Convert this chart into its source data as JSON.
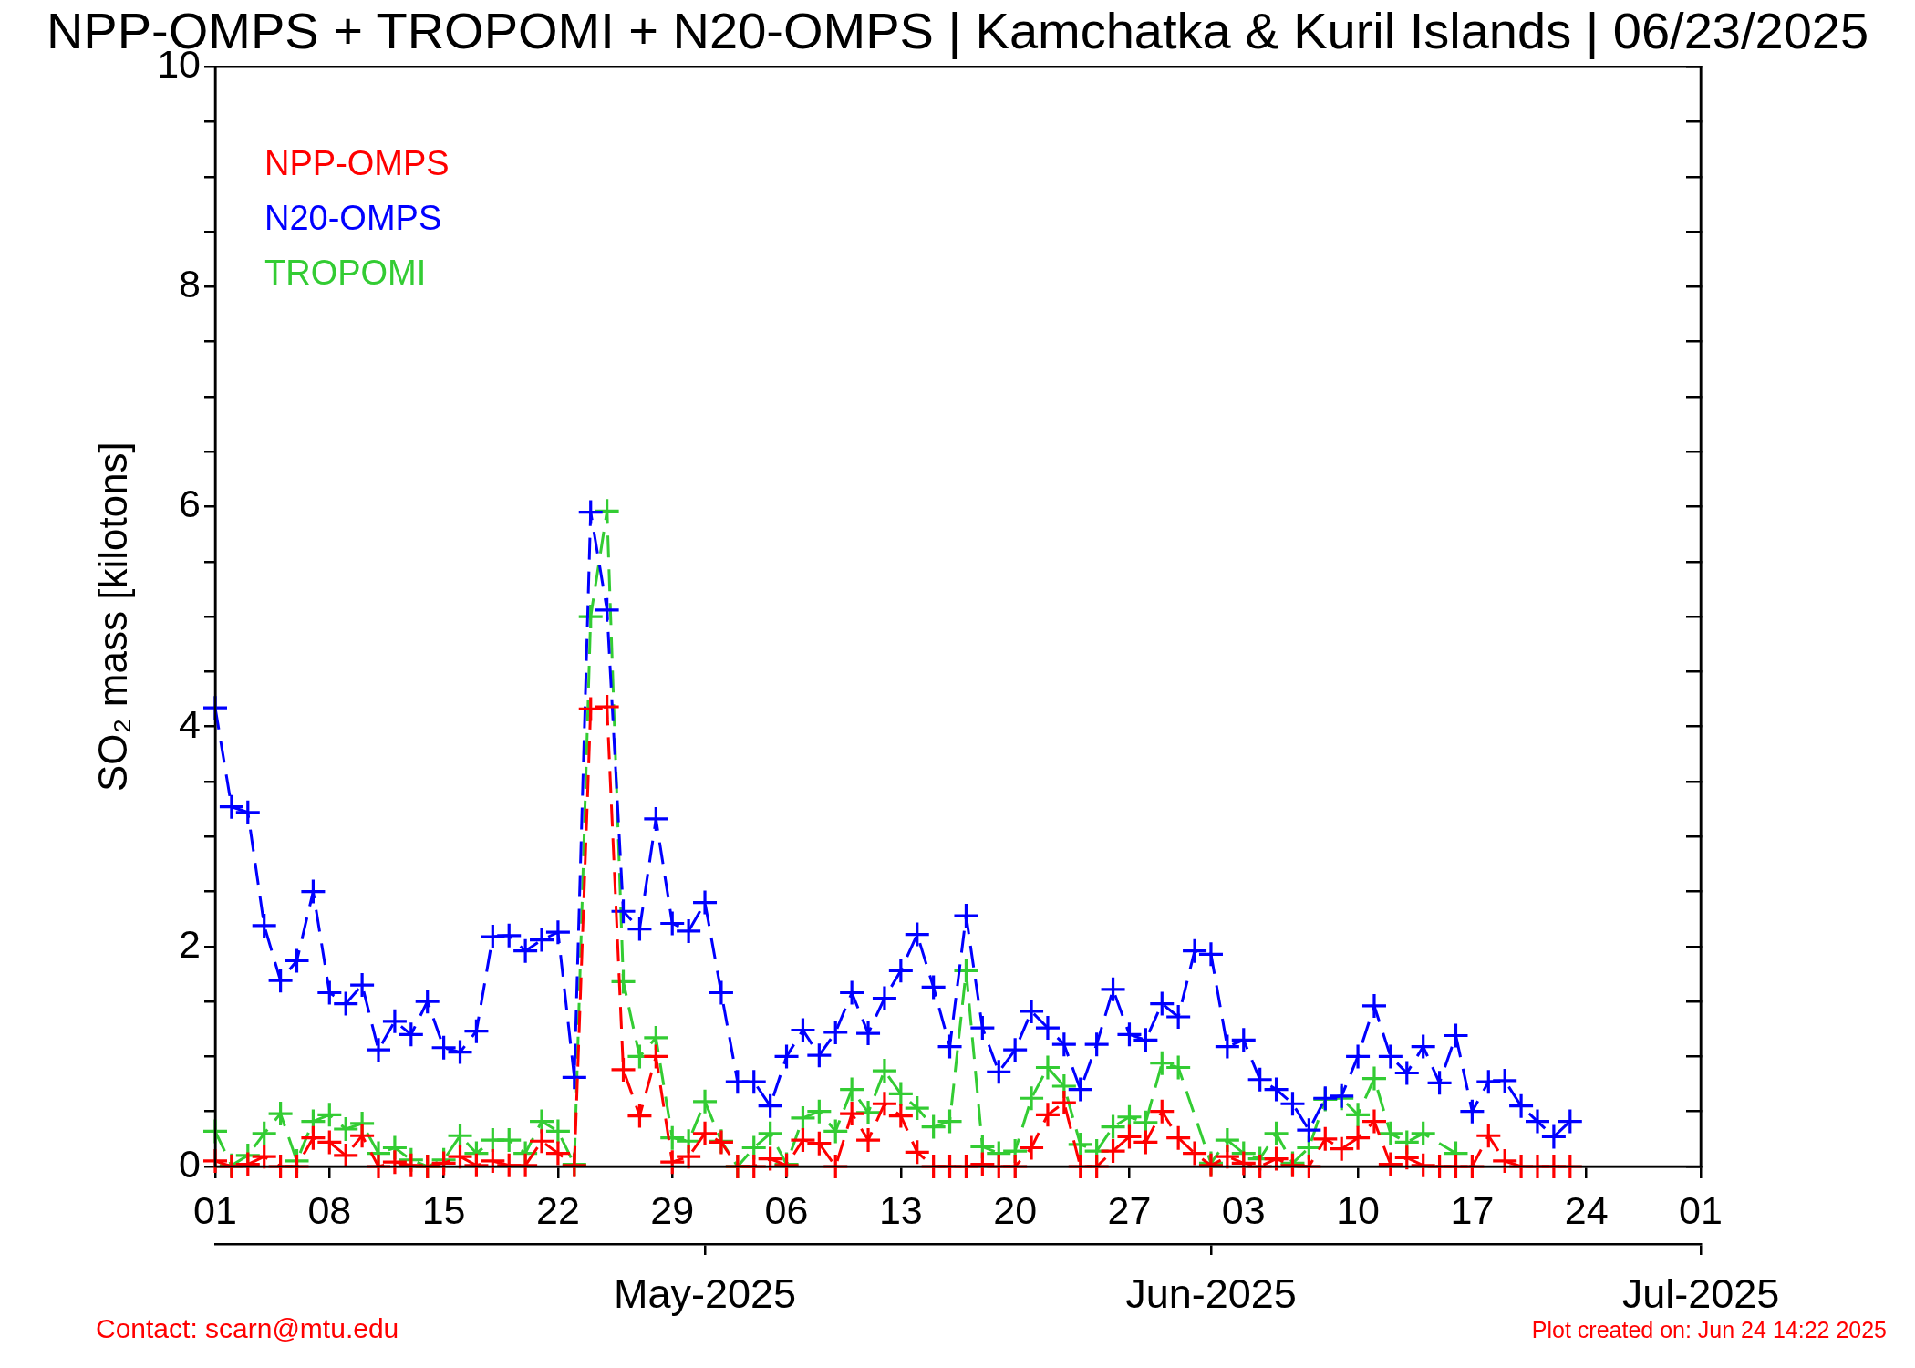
{
  "chart_data": {
    "type": "line",
    "title": "NPP-OMPS + TROPOMI + N20-OMPS | Kamchatka & Kuril Islands | 06/23/2025",
    "ylabel": "SO₂ mass [kilotons]",
    "annotations": [
      "Contact: scarn@mtu.edu",
      "Plot created on: Jun 24 14:22 2025"
    ],
    "marker": "cross",
    "line_style": "dashed",
    "legend": "top left",
    "xlim": [
      "2025-04-01",
      "2025-07-01"
    ],
    "xticks": [
      {
        "value": "2025-04-01",
        "label": "01"
      },
      {
        "value": "2025-04-08",
        "label": "08"
      },
      {
        "value": "2025-04-15",
        "label": "15"
      },
      {
        "value": "2025-04-22",
        "label": "22"
      },
      {
        "value": "2025-04-29",
        "label": "29"
      },
      {
        "value": "2025-05-06",
        "label": "06"
      },
      {
        "value": "2025-05-13",
        "label": "13"
      },
      {
        "value": "2025-05-20",
        "label": "20"
      },
      {
        "value": "2025-05-27",
        "label": "27"
      },
      {
        "value": "2025-06-03",
        "label": "03"
      },
      {
        "value": "2025-06-10",
        "label": "10"
      },
      {
        "value": "2025-06-17",
        "label": "17"
      },
      {
        "value": "2025-06-24",
        "label": "24"
      },
      {
        "value": "2025-07-01",
        "label": "01"
      }
    ],
    "x2lim": [
      "2025-04-01",
      "2025-07-01"
    ],
    "x2ticks": [
      {
        "value": "2025-05-01",
        "label": "May-2025"
      },
      {
        "value": "2025-06-01",
        "label": "Jun-2025"
      },
      {
        "value": "2025-07-01",
        "label": "Jul-2025"
      }
    ],
    "ylim": [
      0,
      10
    ],
    "yticks": [
      0,
      {
        "value": 0.5,
        "label": null
      },
      {
        "value": 1,
        "label": null
      },
      {
        "value": 1.5,
        "label": null
      },
      2,
      {
        "value": 2.5,
        "label": null
      },
      {
        "value": 3,
        "label": null
      },
      {
        "value": 3.5,
        "label": null
      },
      4,
      {
        "value": 4.5,
        "label": null
      },
      {
        "value": 5,
        "label": null
      },
      {
        "value": 5.5,
        "label": null
      },
      6,
      {
        "value": 6.5,
        "label": null
      },
      {
        "value": 7,
        "label": null
      },
      {
        "value": 7.5,
        "label": null
      },
      8,
      {
        "value": 8.5,
        "label": null
      },
      {
        "value": 9,
        "label": null
      },
      {
        "value": 9.5,
        "label": null
      },
      10
    ],
    "x": [
      "2025-04-01",
      "2025-04-02",
      "2025-04-03",
      "2025-04-04",
      "2025-04-05",
      "2025-04-06",
      "2025-04-07",
      "2025-04-08",
      "2025-04-09",
      "2025-04-10",
      "2025-04-11",
      "2025-04-12",
      "2025-04-13",
      "2025-04-14",
      "2025-04-15",
      "2025-04-16",
      "2025-04-17",
      "2025-04-18",
      "2025-04-19",
      "2025-04-20",
      "2025-04-21",
      "2025-04-22",
      "2025-04-23",
      "2025-04-24",
      "2025-04-25",
      "2025-04-26",
      "2025-04-27",
      "2025-04-28",
      "2025-04-29",
      "2025-04-30",
      "2025-05-01",
      "2025-05-02",
      "2025-05-03",
      "2025-05-04",
      "2025-05-05",
      "2025-05-06",
      "2025-05-07",
      "2025-05-08",
      "2025-05-09",
      "2025-05-10",
      "2025-05-11",
      "2025-05-12",
      "2025-05-13",
      "2025-05-14",
      "2025-05-15",
      "2025-05-16",
      "2025-05-17",
      "2025-05-18",
      "2025-05-19",
      "2025-05-20",
      "2025-05-21",
      "2025-05-22",
      "2025-05-23",
      "2025-05-24",
      "2025-05-25",
      "2025-05-26",
      "2025-05-27",
      "2025-05-28",
      "2025-05-29",
      "2025-05-30",
      "2025-05-31",
      "2025-06-01",
      "2025-06-02",
      "2025-06-03",
      "2025-06-04",
      "2025-06-05",
      "2025-06-06",
      "2025-06-07",
      "2025-06-08",
      "2025-06-09",
      "2025-06-10",
      "2025-06-11",
      "2025-06-12",
      "2025-06-13",
      "2025-06-14",
      "2025-06-15",
      "2025-06-16",
      "2025-06-17",
      "2025-06-18",
      "2025-06-19",
      "2025-06-20",
      "2025-06-21",
      "2025-06-22",
      "2025-06-23"
    ],
    "series": [
      {
        "name": "NPP-OMPS",
        "color": "#ff0000",
        "values": [
          0.05,
          0,
          0.02,
          0.09,
          0,
          0,
          0.26,
          0.22,
          0.1,
          0.28,
          0,
          0.04,
          0.01,
          0,
          0.03,
          0.09,
          0.01,
          0.05,
          0.01,
          0.01,
          0.23,
          0.12,
          0.01,
          4.16,
          4.18,
          0.88,
          0.46,
          1,
          0.04,
          0.09,
          0.3,
          0.22,
          0,
          0,
          0.07,
          0.01,
          0.24,
          0.21,
          0,
          0.48,
          0.24,
          0.57,
          0.46,
          0.13,
          0,
          0,
          0,
          0.02,
          0,
          0,
          0.17,
          0.47,
          0.58,
          0,
          0,
          0.14,
          0.27,
          0.22,
          0.5,
          0.26,
          0.12,
          0.01,
          0.09,
          0.03,
          0,
          0.07,
          0.01,
          0,
          0.25,
          0.16,
          0.26,
          0.41,
          0.02,
          0.08,
          0.01,
          0,
          0,
          0,
          0.28,
          0.05,
          0,
          0,
          0,
          0
        ]
      },
      {
        "name": "N20-OMPS",
        "color": "#0000ff",
        "values": [
          4.17,
          3.27,
          3.22,
          2.19,
          1.69,
          1.87,
          2.5,
          1.58,
          1.48,
          1.65,
          1.06,
          1.32,
          1.2,
          1.5,
          1.08,
          1.04,
          1.23,
          2.09,
          2.1,
          1.96,
          2.06,
          2.13,
          0.81,
          5.95,
          5.06,
          2.32,
          2.16,
          3.16,
          2.21,
          2.14,
          2.4,
          1.58,
          0.77,
          0.77,
          0.55,
          1,
          1.24,
          1.01,
          1.22,
          1.58,
          1.21,
          1.53,
          1.78,
          2.11,
          1.63,
          1.09,
          2.28,
          1.26,
          0.86,
          1.06,
          1.41,
          1.26,
          1.11,
          0.7,
          1.11,
          1.61,
          1.2,
          1.15,
          1.48,
          1.36,
          1.96,
          1.93,
          1.09,
          1.15,
          0.79,
          0.7,
          0.57,
          0.33,
          0.62,
          0.64,
          1,
          1.46,
          1,
          0.85,
          1.09,
          0.76,
          1.19,
          0.5,
          0.77,
          0.78,
          0.55,
          0.41,
          0.27,
          0.41
        ]
      },
      {
        "name": "TROPOMI",
        "color": "#33cc33",
        "x": [
          "2025-04-01",
          "2025-04-02",
          "2025-04-03",
          "2025-04-04",
          "2025-04-05",
          "2025-04-06",
          "2025-04-07",
          "2025-04-08",
          "2025-04-09",
          "2025-04-10",
          "2025-04-11",
          "2025-04-12",
          "2025-04-13",
          "2025-04-14",
          "2025-04-15",
          "2025-04-16",
          "2025-04-17",
          "2025-04-18",
          "2025-04-19",
          "2025-04-20",
          "2025-04-21",
          "2025-04-22",
          "2025-04-23",
          "2025-04-24",
          "2025-04-25",
          "2025-04-26",
          "2025-04-27",
          "2025-04-28",
          "2025-04-29",
          "2025-04-30",
          "2025-05-01",
          "2025-05-02",
          "2025-05-03",
          "2025-05-04",
          "2025-05-05",
          "2025-05-06",
          "2025-05-07",
          "2025-05-08",
          "2025-05-09",
          "2025-05-10",
          "2025-05-11",
          "2025-05-12",
          "2025-05-13",
          "2025-05-14",
          "2025-05-15",
          "2025-05-16",
          "2025-05-17",
          "2025-05-18",
          "2025-05-19",
          "2025-05-20",
          "2025-05-21",
          "2025-05-22",
          "2025-05-23",
          "2025-05-24",
          "2025-05-25",
          "2025-05-26",
          "2025-05-27",
          "2025-05-28",
          "2025-05-29",
          "2025-05-30",
          "2025-06-01",
          "2025-06-02",
          "2025-06-03",
          "2025-06-04",
          "2025-06-05",
          "2025-06-06",
          "2025-06-07",
          "2025-06-08",
          "2025-06-09",
          "2025-06-10",
          "2025-06-11",
          "2025-06-12",
          "2025-06-13",
          "2025-06-14",
          "2025-06-16"
        ],
        "values": [
          0.32,
          0.01,
          0.1,
          0.3,
          0.48,
          0.05,
          0.41,
          0.47,
          0.34,
          0.39,
          0.12,
          0.17,
          0.06,
          0,
          0.06,
          0.28,
          0.12,
          0.24,
          0.24,
          0.12,
          0.41,
          0.32,
          0.02,
          5,
          5.96,
          1.68,
          1,
          1.17,
          0.26,
          0.23,
          0.59,
          0.23,
          0,
          0.17,
          0.3,
          0.02,
          0.44,
          0.5,
          0.32,
          0.7,
          0.49,
          0.87,
          0.66,
          0.53,
          0.36,
          0.41,
          1.78,
          0.18,
          0.12,
          0.14,
          0.62,
          0.9,
          0.73,
          0.2,
          0.14,
          0.36,
          0.45,
          0.4,
          0.94,
          0.9,
          0.03,
          0.24,
          0.12,
          0.07,
          0.3,
          0.03,
          0.17,
          0.61,
          0.62,
          0.47,
          0.8,
          0.3,
          0.22,
          0.3,
          0.12
        ]
      }
    ]
  }
}
